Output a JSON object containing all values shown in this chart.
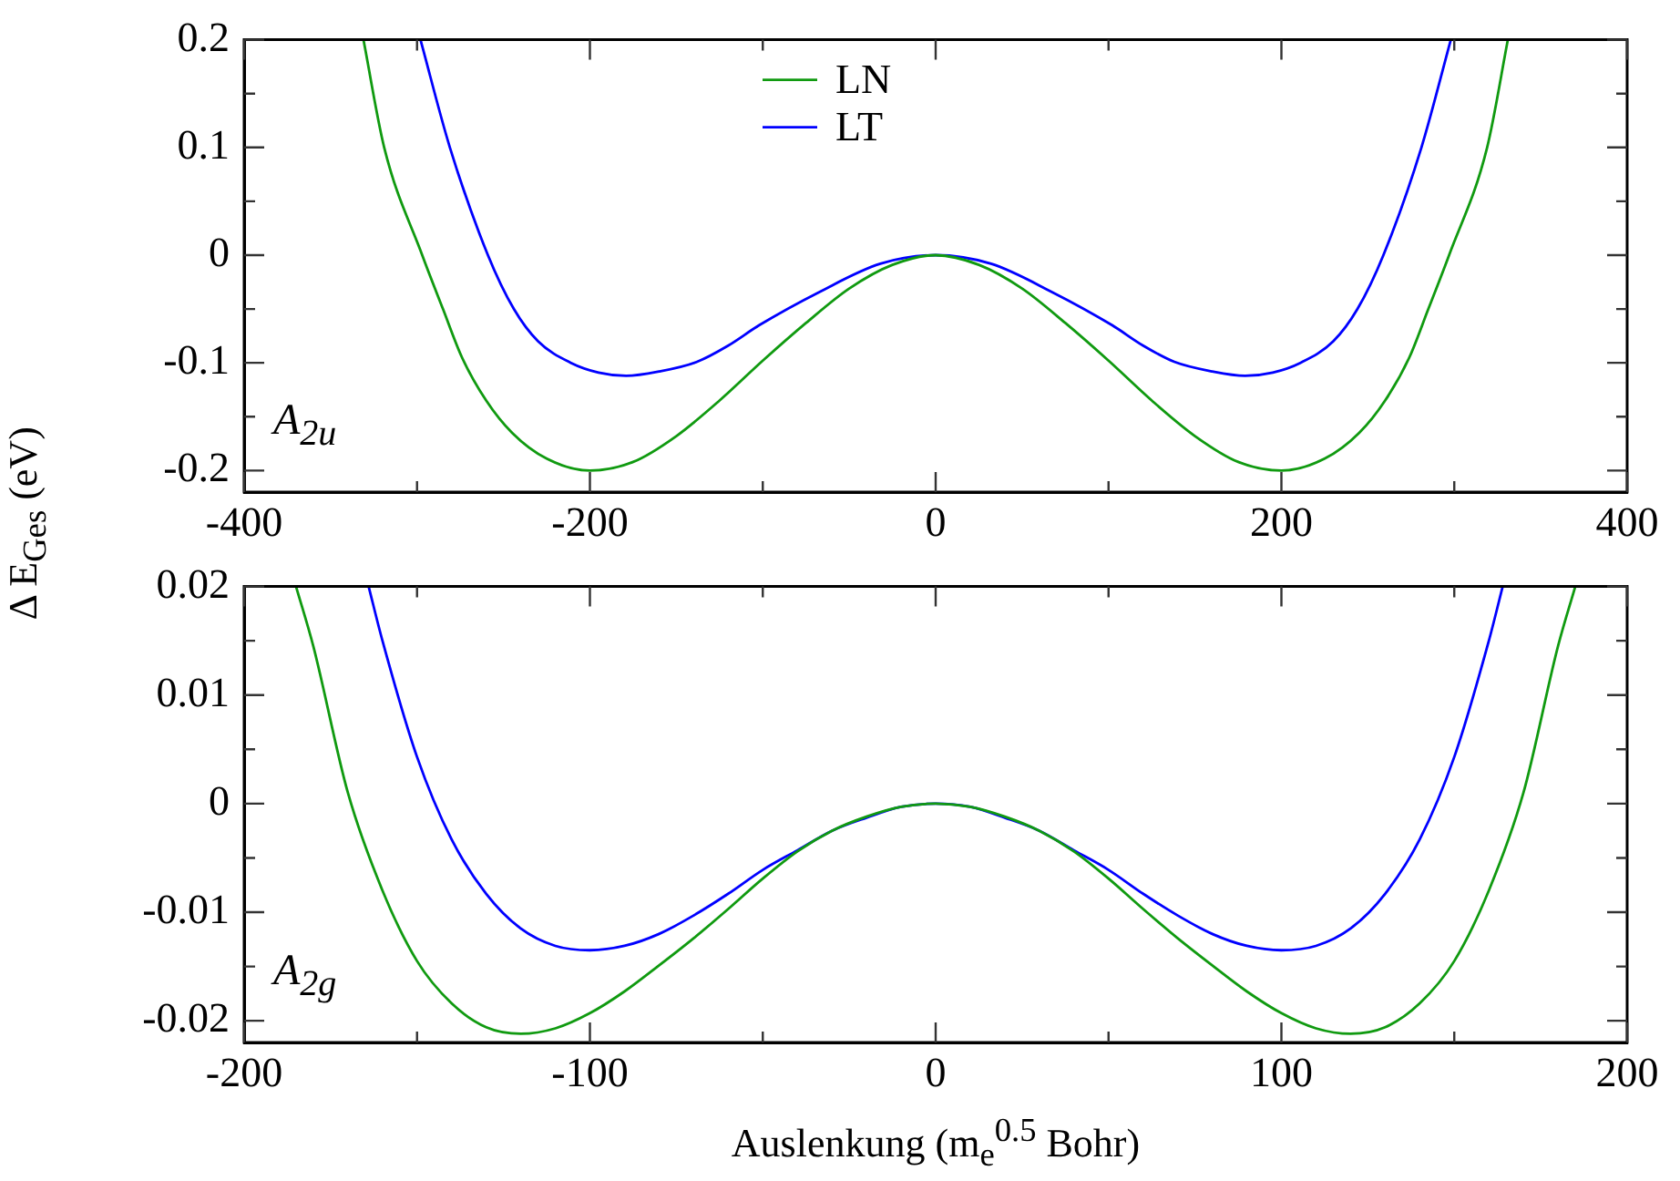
{
  "chart_data": [
    {
      "type": "line",
      "ylabel": "Δ E$_{Ges}$ (eV)",
      "legend": "top",
      "annotations": [
        "A$_{2u}$"
      ],
      "xlim": [
        -400,
        400
      ],
      "xticks": [
        -400,
        {
          "value": -300,
          "label": null
        },
        -200,
        {
          "value": -100,
          "label": null
        },
        0,
        {
          "value": 100,
          "label": null
        },
        200,
        {
          "value": 300,
          "label": null
        },
        400
      ],
      "ylim": [
        -0.22,
        0.2
      ],
      "yticks": [
        {
          "value": -0.2,
          "label": "-0.2"
        },
        {
          "value": -0.15,
          "label": null
        },
        {
          "value": -0.1,
          "label": "-0.1"
        },
        {
          "value": -0.05,
          "label": null
        },
        0,
        {
          "value": 0.05,
          "label": null
        },
        0.1,
        {
          "value": 0.15,
          "label": null
        },
        0.2
      ],
      "series": [
        {
          "name": "LN",
          "color": "#109a10",
          "x": [
            -331,
            -319,
            -297,
            -285,
            -274,
            -260,
            -245,
            -225,
            -200,
            -175,
            -150,
            -125,
            -100,
            -75,
            -50,
            -25,
            0,
            25,
            50,
            75,
            100,
            125,
            150,
            175,
            200,
            225,
            245,
            260,
            274,
            285,
            297,
            319,
            331
          ],
          "values": [
            0.2,
            0.1,
            0,
            -0.05,
            -0.095,
            -0.135,
            -0.165,
            -0.189,
            -0.2,
            -0.192,
            -0.168,
            -0.135,
            -0.098,
            -0.063,
            -0.031,
            -0.009,
            0,
            -0.009,
            -0.031,
            -0.063,
            -0.098,
            -0.135,
            -0.168,
            -0.192,
            -0.2,
            -0.189,
            -0.165,
            -0.135,
            -0.095,
            -0.05,
            0,
            0.1,
            0.2
          ]
        },
        {
          "name": "LT",
          "color": "#0000ff",
          "x": [
            -298,
            -281,
            -259,
            -244,
            -230,
            -211,
            -195,
            -179,
            -160,
            -138,
            -120,
            -102,
            -67,
            -32,
            0,
            32,
            67,
            102,
            120,
            138,
            160,
            179,
            195,
            211,
            230,
            244,
            259,
            281,
            298
          ],
          "values": [
            0.2,
            0.1,
            0,
            -0.05,
            -0.08,
            -0.1,
            -0.109,
            -0.112,
            -0.108,
            -0.099,
            -0.084,
            -0.065,
            -0.034,
            -0.008,
            0,
            -0.008,
            -0.034,
            -0.065,
            -0.084,
            -0.099,
            -0.108,
            -0.112,
            -0.109,
            -0.1,
            -0.08,
            -0.05,
            0,
            0.1,
            0.2
          ]
        }
      ]
    },
    {
      "type": "line",
      "xlabel": "Auslenkung (m$_{e}$$^{0.5}$ Bohr)",
      "annotations": [
        "A$_{2g}$"
      ],
      "xlim": [
        -200,
        200
      ],
      "xticks": [
        -200,
        {
          "value": -150,
          "label": null
        },
        -100,
        {
          "value": -50,
          "label": null
        },
        0,
        {
          "value": 50,
          "label": null
        },
        100,
        {
          "value": 150,
          "label": null
        },
        200
      ],
      "ylim": [
        -0.022,
        0.02
      ],
      "yticks": [
        {
          "value": -0.02,
          "label": "-0.02"
        },
        {
          "value": -0.015,
          "label": null
        },
        {
          "value": -0.01,
          "label": "-0.01"
        },
        {
          "value": -0.005,
          "label": null
        },
        0,
        {
          "value": 0.005,
          "label": null
        },
        0.01,
        {
          "value": 0.015,
          "label": null
        },
        0.02
      ],
      "series": [
        {
          "color": "#109a10",
          "x": [
            -185,
            -180,
            -170,
            -160,
            -150,
            -140,
            -130,
            -120,
            -110,
            -100,
            -90,
            -80,
            -70,
            -60,
            -50,
            -40,
            -30,
            -20,
            -10,
            0,
            10,
            20,
            30,
            40,
            50,
            60,
            70,
            80,
            90,
            100,
            110,
            120,
            130,
            140,
            150,
            160,
            170,
            180,
            185
          ],
          "values": [
            0.02,
            0.0145,
            0.001,
            -0.008,
            -0.0145,
            -0.0184,
            -0.0206,
            -0.0212,
            -0.0207,
            -0.0193,
            -0.0173,
            -0.0149,
            -0.0124,
            -0.0097,
            -0.0069,
            -0.0044,
            -0.0025,
            -0.0012,
            -0.0003,
            0,
            -0.0003,
            -0.0012,
            -0.0025,
            -0.0044,
            -0.0069,
            -0.0097,
            -0.0124,
            -0.0149,
            -0.0173,
            -0.0193,
            -0.0207,
            -0.0212,
            -0.0206,
            -0.0184,
            -0.0145,
            -0.008,
            0.001,
            0.0145,
            0.02
          ]
        },
        {
          "color": "#0000ff",
          "x": [
            -164,
            -160,
            -150,
            -140,
            -130,
            -120,
            -110,
            -100,
            -90,
            -80,
            -70,
            -60,
            -50,
            -40,
            -30,
            -20,
            -10,
            0,
            10,
            20,
            30,
            40,
            50,
            60,
            70,
            80,
            90,
            100,
            110,
            120,
            130,
            140,
            150,
            160,
            164
          ],
          "values": [
            0.02,
            0.015,
            0.0043,
            -0.0033,
            -0.0083,
            -0.0115,
            -0.0131,
            -0.0135,
            -0.0131,
            -0.012,
            -0.0103,
            -0.0083,
            -0.0061,
            -0.0043,
            -0.0025,
            -0.0013,
            -0.0003,
            0,
            -0.0003,
            -0.0013,
            -0.0025,
            -0.0043,
            -0.0061,
            -0.0083,
            -0.0103,
            -0.012,
            -0.0131,
            -0.0135,
            -0.0131,
            -0.0115,
            -0.0083,
            -0.0033,
            0.0043,
            0.015,
            0.02
          ]
        }
      ]
    }
  ]
}
